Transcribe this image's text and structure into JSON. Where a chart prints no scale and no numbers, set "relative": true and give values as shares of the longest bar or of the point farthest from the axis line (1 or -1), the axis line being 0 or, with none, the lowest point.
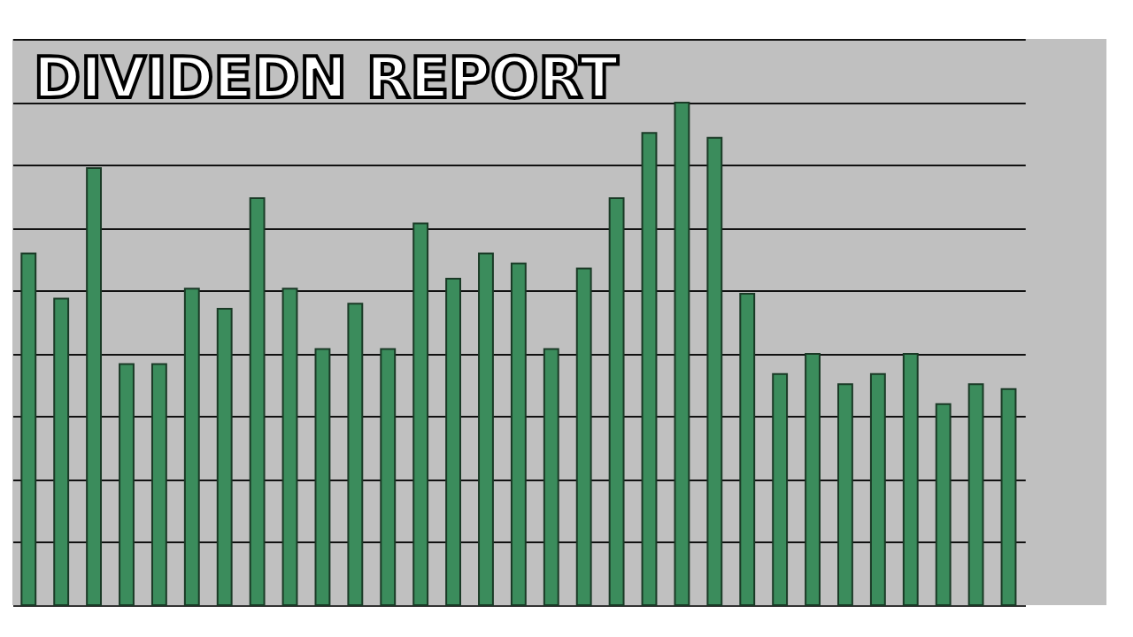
{
  "chart_data": {
    "type": "bar",
    "title": "DIVIDEDN REPORT",
    "relative": true,
    "grid": "y",
    "categories": [
      null,
      null,
      null,
      null,
      null,
      null,
      null,
      null,
      null,
      null,
      null,
      null,
      null,
      null,
      null,
      null,
      null,
      null,
      null,
      null,
      null,
      null,
      null,
      null,
      null,
      null,
      null,
      null,
      null,
      null,
      null
    ],
    "series": [
      {
        "color": "#3b8c5c",
        "values": [
          0.7,
          0.61,
          0.87,
          0.48,
          0.48,
          0.63,
          0.59,
          0.81,
          0.63,
          0.51,
          0.6,
          0.51,
          0.76,
          0.65,
          0.7,
          0.68,
          0.51,
          0.67,
          0.81,
          0.94,
          1,
          0.93,
          0.62,
          0.46,
          0.5,
          0.44,
          0.46,
          0.5,
          0.4,
          0.44,
          0.43
        ]
      }
    ]
  }
}
